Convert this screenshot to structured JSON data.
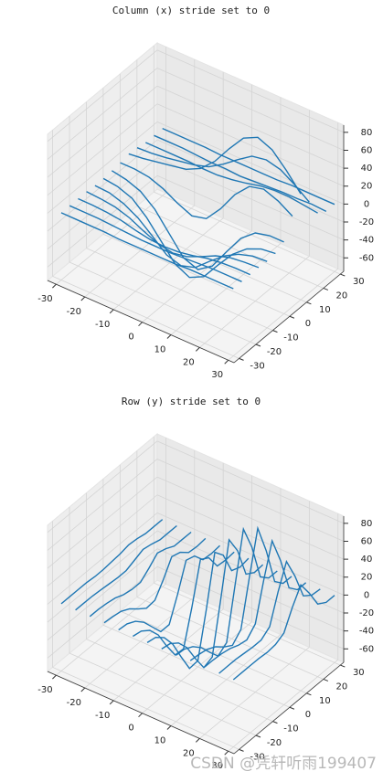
{
  "chart_data": [
    {
      "type": "wireframe",
      "title": "Column (x) stride set to 0",
      "direction": "x",
      "color": "#1f77b4",
      "x": [
        -30,
        -25,
        -20,
        -15,
        -10,
        -5,
        0,
        5,
        10,
        15,
        20,
        25,
        30
      ],
      "y": [
        -30,
        -25,
        -20,
        -15,
        -10,
        -5,
        0,
        5,
        10,
        15,
        20,
        25,
        30
      ],
      "z": [
        [
          0,
          0,
          0,
          0,
          -1,
          -1,
          -1,
          -1,
          -1,
          0,
          0,
          0,
          0
        ],
        [
          0,
          0,
          0,
          -1,
          -2,
          -3,
          -3,
          -3,
          -2,
          -1,
          0,
          0,
          0
        ],
        [
          0,
          0,
          -1,
          -3,
          -7,
          -10,
          -11,
          -10,
          -7,
          -3,
          -1,
          0,
          0
        ],
        [
          0,
          -1,
          -3,
          -8,
          -16,
          -23,
          -26,
          -23,
          -16,
          -8,
          -3,
          -1,
          0
        ],
        [
          -1,
          -2,
          -7,
          -16,
          -29,
          -43,
          -48,
          -43,
          -29,
          -16,
          -7,
          -2,
          -1
        ],
        [
          -1,
          -3,
          -9,
          -23,
          -42,
          -61,
          -69,
          -61,
          -41,
          -22,
          -9,
          -2,
          0
        ],
        [
          0,
          -3,
          -9,
          -22,
          -42,
          -62,
          -68,
          -57,
          -34,
          -12,
          1,
          5,
          5
        ],
        [
          1,
          1,
          -1,
          -7,
          -16,
          -23,
          -19,
          -1,
          22,
          38,
          42,
          36,
          26
        ],
        [
          3,
          5,
          8,
          11,
          14,
          22,
          37,
          58,
          77,
          85,
          78,
          62,
          43
        ],
        [
          2,
          3,
          5,
          8,
          11,
          16,
          26,
          38,
          49,
          52,
          48,
          38,
          26
        ],
        [
          0,
          0,
          0,
          0,
          -1,
          -1,
          1,
          4,
          8,
          10,
          10,
          8,
          6
        ],
        [
          0,
          0,
          0,
          -1,
          -2,
          -2,
          -3,
          -2,
          -1,
          0,
          0,
          1,
          0
        ],
        [
          0,
          0,
          0,
          0,
          -1,
          -1,
          -1,
          -1,
          -1,
          0,
          0,
          0,
          0
        ]
      ],
      "xlim": [
        -33,
        32
      ],
      "ylim": [
        -33,
        32
      ],
      "zlim": [
        -75,
        88
      ],
      "xticks": [
        -30,
        -20,
        -10,
        0,
        10,
        20,
        30
      ],
      "yticks": [
        -30,
        -20,
        -10,
        0,
        10,
        20,
        30
      ],
      "zticks": [
        -60,
        -40,
        -20,
        0,
        20,
        40,
        60,
        80
      ],
      "grid": true
    },
    {
      "type": "wireframe",
      "title": "Row (y) stride set to 0",
      "direction": "y",
      "color": "#1f77b4",
      "x": [
        -30,
        -25,
        -20,
        -15,
        -10,
        -5,
        0,
        5,
        10,
        15,
        20,
        25,
        30
      ],
      "y": [
        -30,
        -25,
        -20,
        -15,
        -10,
        -5,
        0,
        5,
        10,
        15,
        20,
        25,
        30
      ],
      "z": [
        [
          0,
          0,
          0,
          0,
          -1,
          -1,
          -1,
          -1,
          -1,
          0,
          0,
          0,
          0
        ],
        [
          0,
          0,
          0,
          -1,
          -2,
          -3,
          -3,
          -3,
          -2,
          -1,
          0,
          0,
          0
        ],
        [
          0,
          0,
          -1,
          -3,
          -7,
          -10,
          -11,
          -10,
          -7,
          -3,
          -1,
          0,
          0
        ],
        [
          0,
          -1,
          -3,
          -8,
          -16,
          -23,
          -26,
          -23,
          -16,
          -8,
          -3,
          -1,
          0
        ],
        [
          -1,
          -2,
          -7,
          -16,
          -29,
          -43,
          -48,
          -43,
          -29,
          -16,
          -7,
          -2,
          -1
        ],
        [
          -1,
          -3,
          -9,
          -23,
          -42,
          -61,
          -69,
          -61,
          -41,
          -22,
          -9,
          -2,
          0
        ],
        [
          0,
          -3,
          -9,
          -22,
          -42,
          -62,
          -68,
          -57,
          -34,
          -12,
          1,
          5,
          5
        ],
        [
          1,
          1,
          -1,
          -7,
          -16,
          -23,
          -19,
          -1,
          22,
          38,
          42,
          36,
          26
        ],
        [
          3,
          5,
          8,
          11,
          14,
          22,
          37,
          58,
          77,
          85,
          78,
          62,
          43
        ],
        [
          2,
          3,
          5,
          8,
          11,
          16,
          26,
          38,
          49,
          52,
          48,
          38,
          26
        ],
        [
          0,
          0,
          0,
          0,
          -1,
          -1,
          1,
          4,
          8,
          10,
          10,
          8,
          6
        ],
        [
          0,
          0,
          0,
          -1,
          -2,
          -2,
          -3,
          -2,
          -1,
          0,
          0,
          1,
          0
        ],
        [
          0,
          0,
          0,
          0,
          -1,
          -1,
          -1,
          -1,
          -1,
          0,
          0,
          0,
          0
        ]
      ],
      "xlim": [
        -33,
        32
      ],
      "ylim": [
        -33,
        32
      ],
      "zlim": [
        -75,
        88
      ],
      "xticks": [
        -30,
        -20,
        -10,
        0,
        10,
        20,
        30
      ],
      "yticks": [
        -30,
        -20,
        -10,
        0,
        10,
        20,
        30
      ],
      "zticks": [
        -60,
        -40,
        -20,
        0,
        20,
        40,
        60,
        80
      ],
      "grid": true
    }
  ],
  "watermark": "CSDN @凭轩听雨199407"
}
